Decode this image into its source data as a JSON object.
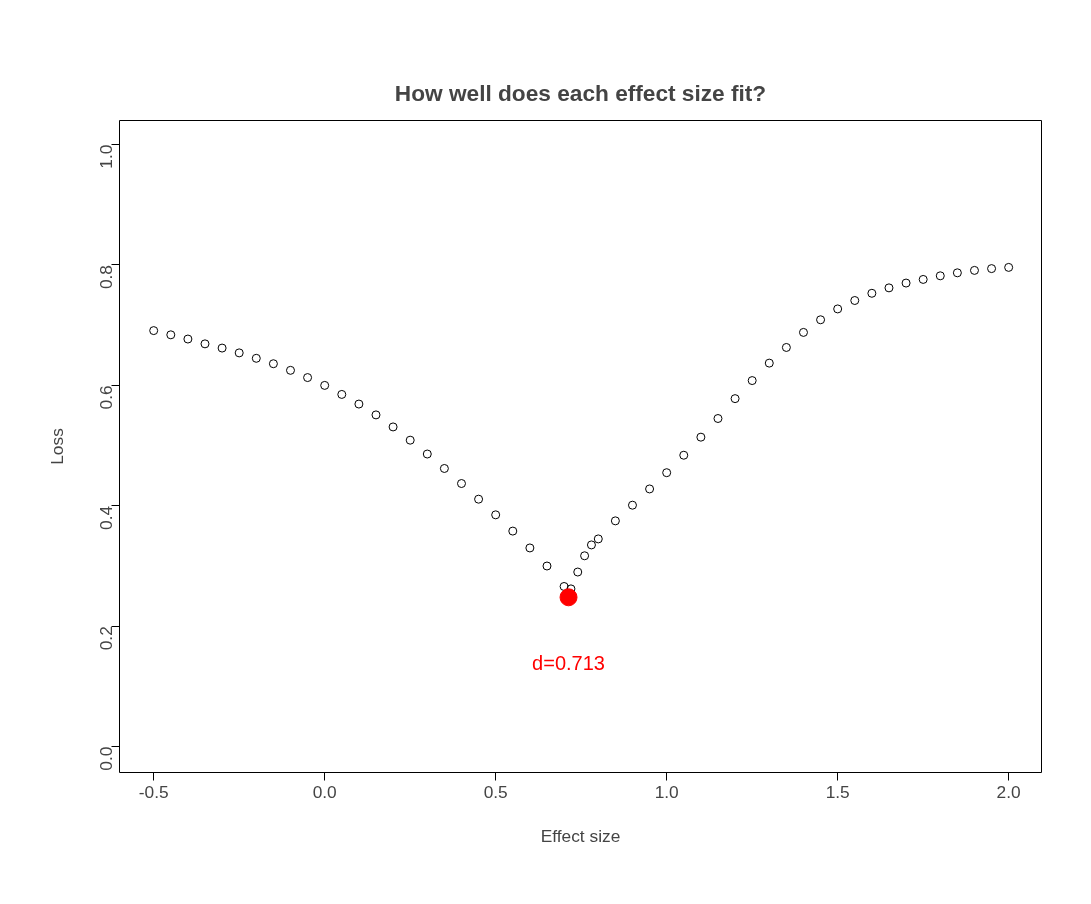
{
  "chart_data": {
    "type": "scatter",
    "title": "How well does each effect size fit?",
    "xlabel": "Effect size",
    "ylabel": "Loss",
    "xlim": [
      -0.6,
      2.096
    ],
    "ylim": [
      -0.043,
      1.04
    ],
    "xticks": [
      {
        "value": -0.5,
        "label": "-0.5"
      },
      {
        "value": 0,
        "label": "0.0"
      },
      {
        "value": 0.5,
        "label": "0.5"
      },
      {
        "value": 1,
        "label": "1.0"
      },
      {
        "value": 1.5,
        "label": "1.5"
      },
      {
        "value": 2,
        "label": "2.0"
      }
    ],
    "yticks": [
      {
        "value": 0,
        "label": "0.0"
      },
      {
        "value": 0.2,
        "label": "0.2"
      },
      {
        "value": 0.4,
        "label": "0.4"
      },
      {
        "value": 0.6,
        "label": "0.6"
      },
      {
        "value": 0.8,
        "label": "0.8"
      },
      {
        "value": 1,
        "label": "1.0"
      }
    ],
    "grid": false,
    "marker": "circle",
    "series": [
      {
        "color": "#000000",
        "x": [
          -0.5,
          -0.45,
          -0.4,
          -0.35,
          -0.3,
          -0.25,
          -0.2,
          -0.15,
          -0.1,
          -0.05,
          0,
          0.05,
          0.1,
          0.15,
          0.2,
          0.25,
          0.3,
          0.35,
          0.4,
          0.45,
          0.5,
          0.55,
          0.6,
          0.65,
          0.7,
          0.72,
          0.74,
          0.76,
          0.78,
          0.8,
          0.85,
          0.9,
          0.95,
          1.0,
          1.05,
          1.1,
          1.15,
          1.2,
          1.25,
          1.3,
          1.35,
          1.4,
          1.45,
          1.5,
          1.55,
          1.6,
          1.65,
          1.7,
          1.75,
          1.8,
          1.85,
          1.9,
          1.95,
          2.0
        ],
        "values": [
          0.691,
          0.684,
          0.677,
          0.669,
          0.662,
          0.654,
          0.645,
          0.636,
          0.625,
          0.613,
          0.6,
          0.585,
          0.569,
          0.551,
          0.531,
          0.509,
          0.486,
          0.462,
          0.437,
          0.411,
          0.385,
          0.358,
          0.33,
          0.3,
          0.266,
          0.262,
          0.29,
          0.317,
          0.335,
          0.345,
          0.375,
          0.401,
          0.428,
          0.455,
          0.484,
          0.514,
          0.545,
          0.578,
          0.608,
          0.637,
          0.663,
          0.688,
          0.709,
          0.727,
          0.741,
          0.753,
          0.762,
          0.77,
          0.776,
          0.782,
          0.787,
          0.791,
          0.794,
          0.796
        ]
      },
      {
        "color": "#ff0000",
        "x": [
          0.713
        ],
        "values": [
          0.248
        ]
      }
    ],
    "annotations": [
      "d=0.713"
    ]
  }
}
